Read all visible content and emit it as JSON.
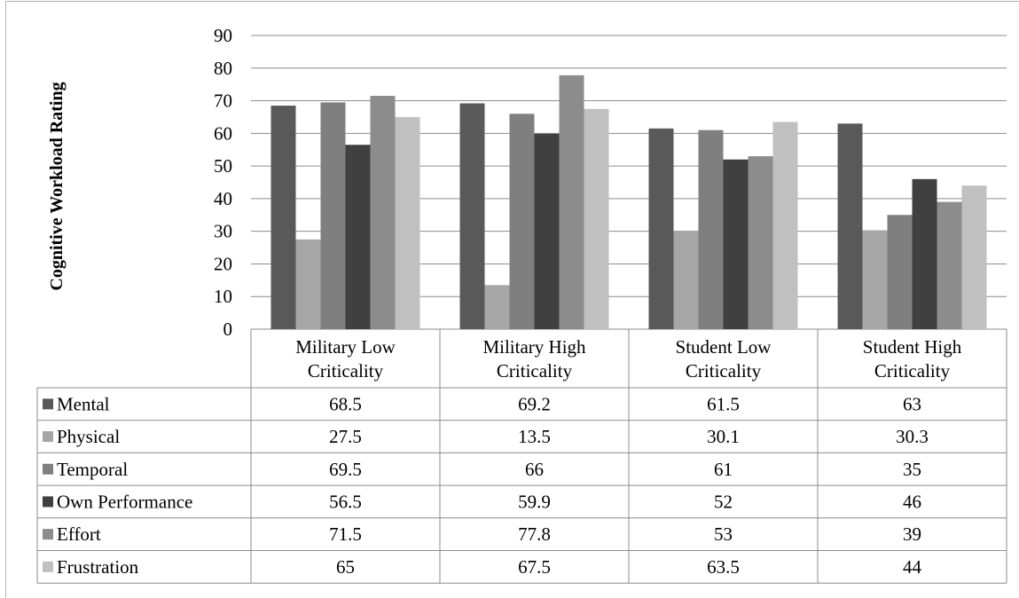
{
  "chart_data": {
    "type": "bar",
    "ylabel": "Cognitive Workload Rating",
    "ylim": [
      0,
      90
    ],
    "yticks": [
      0,
      10,
      20,
      30,
      40,
      50,
      60,
      70,
      80,
      90
    ],
    "grid": true,
    "legend": "data-table",
    "categories": [
      [
        "Military Low",
        "Criticality"
      ],
      [
        "Military High",
        "Criticality"
      ],
      [
        "Student Low",
        "Criticality"
      ],
      [
        "Student High",
        "Criticality"
      ]
    ],
    "series": [
      {
        "name": "Mental",
        "color": "#595959",
        "values": [
          68.5,
          69.2,
          61.5,
          63
        ]
      },
      {
        "name": "Physical",
        "color": "#a6a6a6",
        "values": [
          27.5,
          13.5,
          30.1,
          30.3
        ]
      },
      {
        "name": "Temporal",
        "color": "#7f7f7f",
        "values": [
          69.5,
          66,
          61,
          35
        ]
      },
      {
        "name": "Own Performance",
        "color": "#404040",
        "values": [
          56.5,
          59.9,
          52,
          46
        ]
      },
      {
        "name": "Effort",
        "color": "#8c8c8c",
        "values": [
          71.5,
          77.8,
          53,
          39
        ]
      },
      {
        "name": "Frustration",
        "color": "#c0c0c0",
        "values": [
          65,
          67.5,
          63.5,
          44
        ]
      }
    ]
  }
}
